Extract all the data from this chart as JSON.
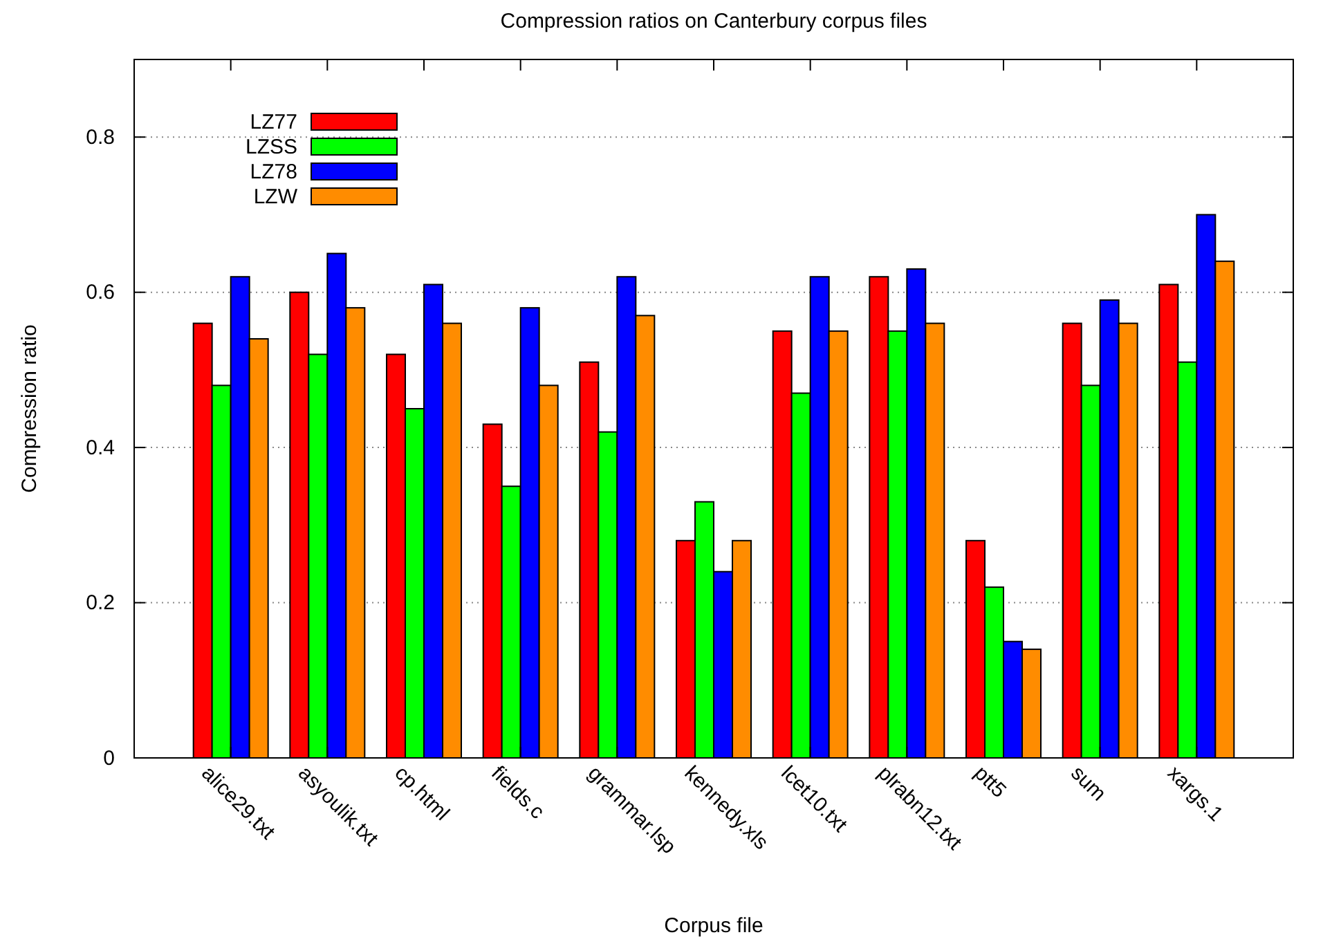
{
  "chart_data": {
    "type": "bar",
    "title": "Compression ratios on Canterbury corpus files",
    "xlabel": "Corpus file",
    "ylabel": "Compression ratio",
    "categories": [
      "alice29.txt",
      "asyoulik.txt",
      "cp.html",
      "fields.c",
      "grammar.lsp",
      "kennedy.xls",
      "lcet10.txt",
      "plrabn12.txt",
      "ptt5",
      "sum",
      "xargs.1"
    ],
    "series": [
      {
        "name": "LZ77",
        "color": "#ff0000",
        "values": [
          0.56,
          0.6,
          0.52,
          0.43,
          0.51,
          0.28,
          0.55,
          0.62,
          0.28,
          0.56,
          0.61
        ]
      },
      {
        "name": "LZSS",
        "color": "#00ff00",
        "values": [
          0.48,
          0.52,
          0.45,
          0.35,
          0.42,
          0.33,
          0.47,
          0.55,
          0.22,
          0.48,
          0.51
        ]
      },
      {
        "name": "LZ78",
        "color": "#0000ff",
        "values": [
          0.62,
          0.65,
          0.61,
          0.58,
          0.62,
          0.24,
          0.62,
          0.63,
          0.15,
          0.59,
          0.7
        ]
      },
      {
        "name": "LZW",
        "color": "#ff8c00",
        "values": [
          0.54,
          0.58,
          0.56,
          0.48,
          0.57,
          0.28,
          0.55,
          0.56,
          0.14,
          0.56,
          0.64
        ]
      }
    ],
    "ylim": [
      0,
      0.9
    ],
    "yticks": [
      0,
      0.2,
      0.4,
      0.6,
      0.8
    ],
    "grid": "y",
    "legend": "top left"
  }
}
